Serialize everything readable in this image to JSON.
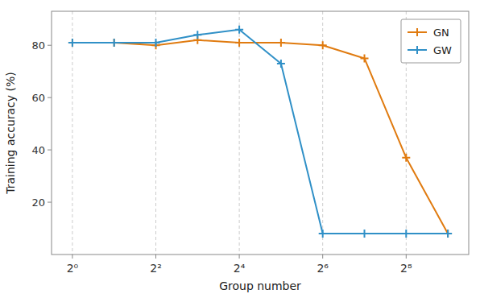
{
  "chart_data": {
    "type": "line",
    "title": "",
    "xlabel": "Group number",
    "ylabel": "Training accuracy (%)",
    "x": [
      0,
      1,
      2,
      3,
      4,
      5,
      6,
      7,
      8,
      9
    ],
    "series": [
      {
        "name": "GN",
        "color": "#E07B10",
        "marker": "plus",
        "values": [
          81,
          81,
          80,
          82,
          81,
          81,
          80,
          75,
          37,
          8
        ]
      },
      {
        "name": "GW",
        "color": "#3090C7",
        "marker": "plus",
        "values": [
          81,
          81,
          81,
          84,
          86,
          73,
          8,
          8,
          8,
          8
        ]
      }
    ],
    "xlim": [
      -0.5,
      9.5
    ],
    "xticks": [
      {
        "value": 0,
        "label": "2⁰"
      },
      {
        "value": 2,
        "label": "2²"
      },
      {
        "value": 4,
        "label": "2⁴"
      },
      {
        "value": 6,
        "label": "2⁶"
      },
      {
        "value": 8,
        "label": "2⁸"
      }
    ],
    "ylim": [
      0,
      93
    ],
    "yticks": [
      20,
      40,
      60,
      80
    ],
    "grid": "x",
    "legend": "upper right"
  }
}
